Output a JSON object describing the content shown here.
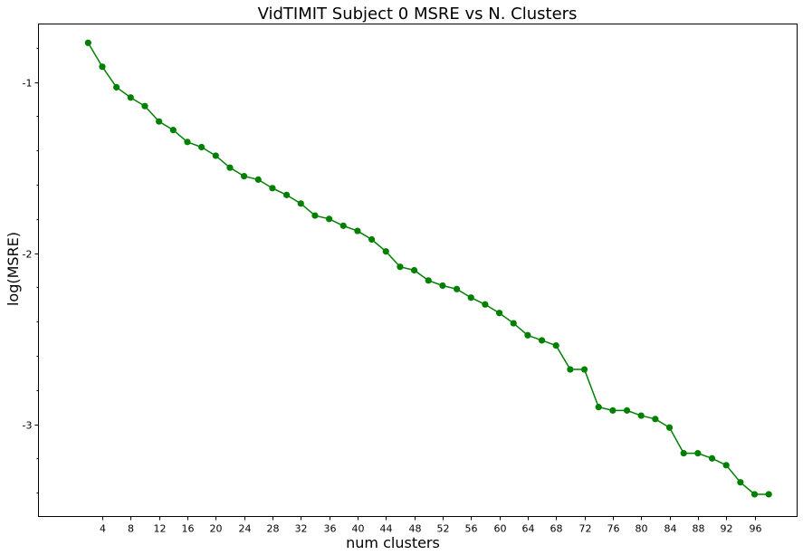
{
  "chart_data": {
    "type": "line",
    "title": "VidTIMIT Subject 0 MSRE vs N. Clusters",
    "xlabel": "num clusters",
    "ylabel": "log(MSRE)",
    "x_ticks": [
      4,
      8,
      12,
      16,
      20,
      24,
      28,
      32,
      36,
      40,
      44,
      48,
      52,
      56,
      60,
      64,
      68,
      72,
      76,
      80,
      84,
      88,
      92,
      96
    ],
    "y_ticks": [
      -1,
      -2,
      -3
    ],
    "xlim": [
      -5.0,
      102.0
    ],
    "ylim": [
      -3.54,
      -0.66
    ],
    "grid": false,
    "series": [
      {
        "color": "#008000",
        "x": [
          2,
          4,
          6,
          8,
          10,
          12,
          14,
          16,
          18,
          20,
          22,
          24,
          26,
          28,
          30,
          32,
          34,
          36,
          38,
          40,
          42,
          44,
          46,
          48,
          50,
          52,
          54,
          56,
          58,
          60,
          62,
          64,
          66,
          68,
          70,
          72,
          74,
          76,
          78,
          80,
          82,
          84,
          86,
          88,
          90,
          92,
          94,
          96,
          98
        ],
        "y": [
          -0.77,
          -0.91,
          -1.03,
          -1.09,
          -1.14,
          -1.23,
          -1.28,
          -1.35,
          -1.38,
          -1.43,
          -1.5,
          -1.55,
          -1.57,
          -1.62,
          -1.66,
          -1.71,
          -1.78,
          -1.8,
          -1.84,
          -1.87,
          -1.92,
          -1.99,
          -2.08,
          -2.1,
          -2.16,
          -2.19,
          -2.21,
          -2.26,
          -2.3,
          -2.35,
          -2.41,
          -2.48,
          -2.51,
          -2.54,
          -2.68,
          -2.68,
          -2.9,
          -2.92,
          -2.92,
          -2.95,
          -2.97,
          -3.02,
          -3.17,
          -3.17,
          -3.2,
          -3.24,
          -3.34,
          -3.41,
          -3.41
        ]
      }
    ]
  }
}
